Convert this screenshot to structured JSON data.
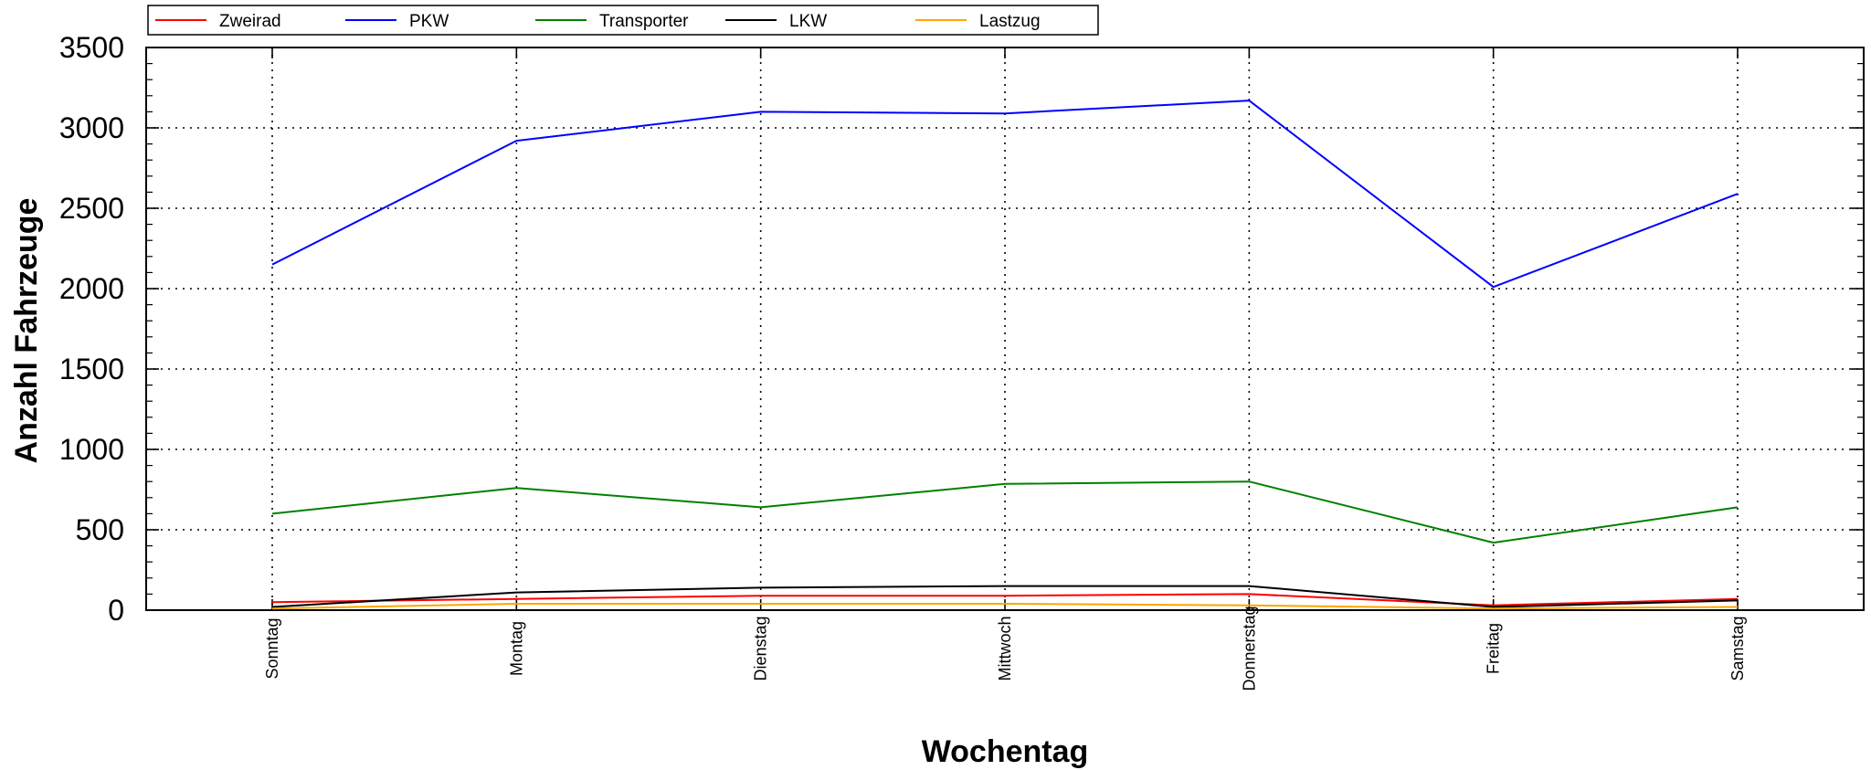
{
  "chart_data": {
    "type": "line",
    "title": "",
    "xlabel": "Wochentag",
    "ylabel": "Anzahl Fahrzeuge",
    "categories": [
      "Sonntag",
      "Montag",
      "Dienstag",
      "Mittwoch",
      "Donnerstag",
      "Freitag",
      "Samstag"
    ],
    "ylim": [
      0,
      3500
    ],
    "yticks": [
      "0",
      "500",
      "1000",
      "1500",
      "2000",
      "2500",
      "3000",
      "3500"
    ],
    "grid": true,
    "legend_position": "top-left",
    "series": [
      {
        "name": "Zweirad",
        "color": "#ff0000",
        "values": [
          50,
          70,
          90,
          90,
          100,
          30,
          70
        ]
      },
      {
        "name": "PKW",
        "color": "#0000ff",
        "values": [
          2150,
          2920,
          3100,
          3090,
          3170,
          2010,
          2590
        ]
      },
      {
        "name": "Transporter",
        "color": "#008000",
        "values": [
          600,
          760,
          640,
          785,
          800,
          420,
          640
        ]
      },
      {
        "name": "LKW",
        "color": "#000000",
        "values": [
          20,
          110,
          140,
          150,
          150,
          20,
          60
        ]
      },
      {
        "name": "Lastzug",
        "color": "#ffa500",
        "values": [
          10,
          40,
          40,
          40,
          30,
          10,
          20
        ]
      }
    ]
  }
}
